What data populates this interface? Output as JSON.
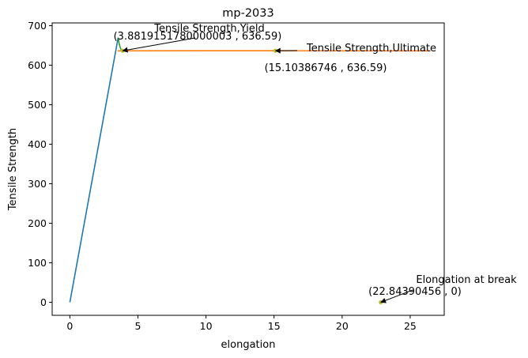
{
  "chart_data": {
    "type": "line",
    "title": "mp-2033",
    "xlabel": "elongation",
    "ylabel": "Tensile Strength",
    "xlim": [
      -1.3,
      27.5
    ],
    "ylim": [
      -33,
      707
    ],
    "xticks": [
      0,
      5,
      10,
      15,
      20,
      25
    ],
    "yticks": [
      0,
      100,
      200,
      300,
      400,
      500,
      600,
      700
    ],
    "grid": false,
    "legend": null,
    "series": [
      {
        "color": "#1f77b4",
        "x": [
          0,
          3.55
        ],
        "y": [
          0,
          670
        ]
      },
      {
        "color": "#2ca02c",
        "x": [
          3.55,
          3.62,
          3.7,
          3.78,
          3.8819151780000003
        ],
        "y": [
          670,
          655,
          645,
          638,
          636.59
        ]
      },
      {
        "color": "#ff7f0e",
        "x": [
          3.5,
          10,
          15.10386746,
          20,
          26.5
        ],
        "y": [
          636.5,
          636.6,
          636.59,
          636.5,
          636.4
        ]
      }
    ],
    "points": [
      {
        "x": 3.8819151780000003,
        "y": 636.59,
        "color": "#bcbd22"
      },
      {
        "x": 15.10386746,
        "y": 636.59,
        "color": "#bcbd22"
      },
      {
        "x": 22.84390456,
        "y": 0,
        "color": "#bcbd22"
      }
    ],
    "annotations": [
      {
        "label": "Tensile Strength,Yield",
        "value_text": "(3.8819151780000003 , 636.59)",
        "x": 3.8819151780000003,
        "y": 636.59
      },
      {
        "label": "Tensile Strength,Ultimate",
        "value_text": "(15.10386746 , 636.59)",
        "x": 15.10386746,
        "y": 636.59
      },
      {
        "label": "Elongation at break",
        "value_text": "(22.84390456 , 0)",
        "x": 22.84390456,
        "y": 0
      }
    ]
  }
}
